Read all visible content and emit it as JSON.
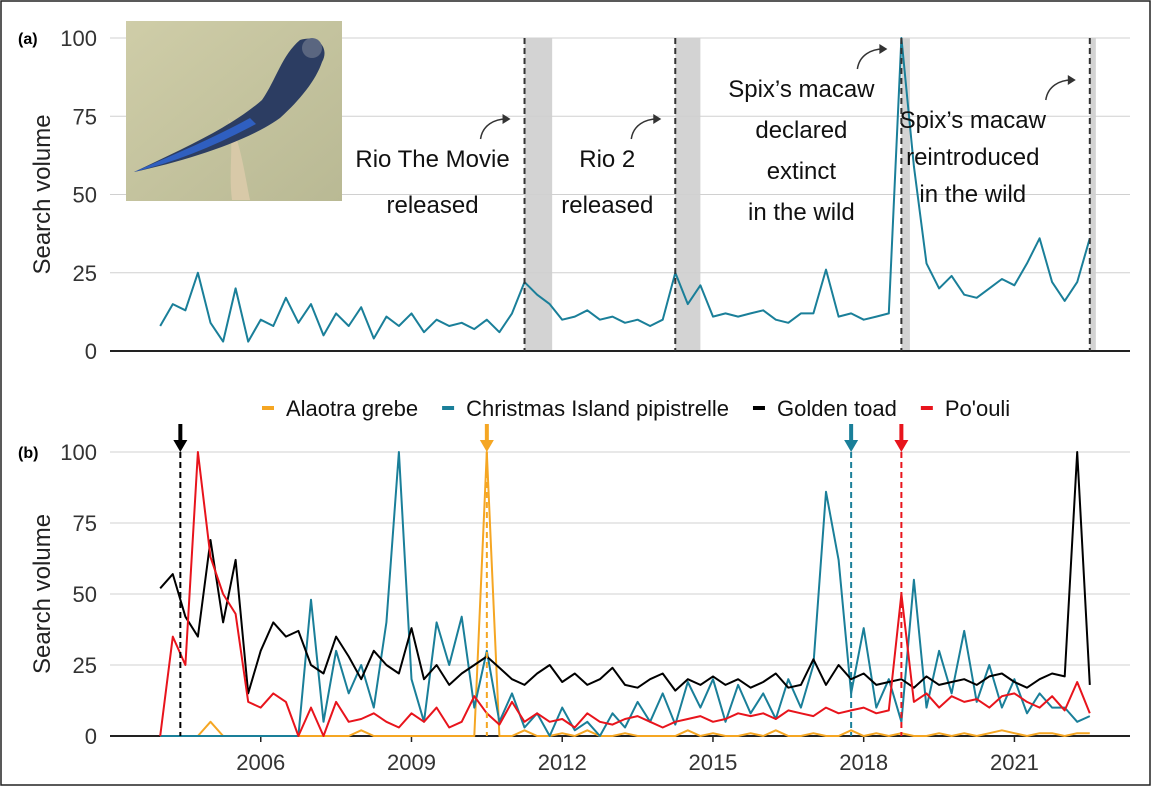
{
  "chart_data": [
    {
      "type": "line",
      "panel_label": "(a)",
      "y_label": "Search volume",
      "x": [
        2004,
        2004.25,
        2004.5,
        2004.75,
        2005,
        2005.25,
        2005.5,
        2005.75,
        2006,
        2006.25,
        2006.5,
        2006.75,
        2007,
        2007.25,
        2007.5,
        2007.75,
        2008,
        2008.25,
        2008.5,
        2008.75,
        2009,
        2009.25,
        2009.5,
        2009.75,
        2010,
        2010.25,
        2010.5,
        2010.75,
        2011,
        2011.25,
        2011.5,
        2011.75,
        2012,
        2012.25,
        2012.5,
        2012.75,
        2013,
        2013.25,
        2013.5,
        2013.75,
        2014,
        2014.25,
        2014.5,
        2014.75,
        2015,
        2015.25,
        2015.5,
        2015.75,
        2016,
        2016.25,
        2016.5,
        2016.75,
        2017,
        2017.25,
        2017.5,
        2017.75,
        2018,
        2018.25,
        2018.5,
        2018.75,
        2019,
        2019.25,
        2019.5,
        2019.75,
        2020,
        2020.25,
        2020.5,
        2020.75,
        2021,
        2021.25,
        2021.5,
        2021.75,
        2022,
        2022.25,
        2022.5
      ],
      "series": [
        {
          "color": "#1a7f99",
          "values": [
            8,
            15,
            13,
            25,
            9,
            3,
            20,
            3,
            10,
            8,
            17,
            9,
            15,
            5,
            12,
            8,
            14,
            4,
            11,
            8,
            12,
            6,
            10,
            8,
            9,
            7,
            10,
            6,
            12,
            22,
            18,
            15,
            10,
            11,
            13,
            10,
            11,
            9,
            10,
            8,
            10,
            25,
            15,
            21,
            11,
            12,
            11,
            12,
            13,
            10,
            9,
            12,
            12,
            26,
            11,
            12,
            10,
            11,
            12,
            100,
            59,
            28,
            20,
            24,
            18,
            17,
            20,
            23,
            21,
            28,
            36,
            22,
            16,
            22,
            36
          ]
        }
      ],
      "xlim": [
        2003,
        2023.3
      ],
      "ylim": [
        0,
        100
      ],
      "yticks": [
        0,
        25,
        50,
        75,
        100
      ],
      "annotations": [
        {
          "x": 2011.25,
          "shade": [
            2011.25,
            2011.8
          ],
          "text": [
            "Rio The Movie",
            "released"
          ]
        },
        {
          "x": 2014.25,
          "shade": [
            2014.25,
            2014.75
          ],
          "text": [
            "Rio 2",
            "released"
          ]
        },
        {
          "x": 2018.75,
          "shade": [
            2018.75,
            2018.92
          ],
          "text": [
            "Spix’s macaw",
            "declared",
            "extinct",
            "in the wild"
          ]
        },
        {
          "x": 2022.5,
          "shade": [
            2022.5,
            2022.62
          ],
          "text": [
            "Spix’s macaw",
            "reintroduced",
            "in the wild"
          ]
        }
      ]
    },
    {
      "type": "line",
      "panel_label": "(b)",
      "y_label": "Search volume",
      "x": [
        2004,
        2004.25,
        2004.5,
        2004.75,
        2005,
        2005.25,
        2005.5,
        2005.75,
        2006,
        2006.25,
        2006.5,
        2006.75,
        2007,
        2007.25,
        2007.5,
        2007.75,
        2008,
        2008.25,
        2008.5,
        2008.75,
        2009,
        2009.25,
        2009.5,
        2009.75,
        2010,
        2010.25,
        2010.5,
        2010.75,
        2011,
        2011.25,
        2011.5,
        2011.75,
        2012,
        2012.25,
        2012.5,
        2012.75,
        2013,
        2013.25,
        2013.5,
        2013.75,
        2014,
        2014.25,
        2014.5,
        2014.75,
        2015,
        2015.25,
        2015.5,
        2015.75,
        2016,
        2016.25,
        2016.5,
        2016.75,
        2017,
        2017.25,
        2017.5,
        2017.75,
        2018,
        2018.25,
        2018.5,
        2018.75,
        2019,
        2019.25,
        2019.5,
        2019.75,
        2020,
        2020.25,
        2020.5,
        2020.75,
        2021,
        2021.25,
        2021.5,
        2021.75,
        2022,
        2022.25,
        2022.5
      ],
      "series": [
        {
          "name": "Alaotra grebe",
          "color": "#f5a623",
          "values": [
            0,
            0,
            0,
            0,
            5,
            0,
            0,
            0,
            0,
            0,
            0,
            0,
            0,
            0,
            0,
            0,
            2,
            0,
            0,
            0,
            0,
            0,
            0,
            0,
            0,
            0,
            100,
            0,
            0,
            2,
            0,
            0,
            1,
            0,
            2,
            0,
            0,
            1,
            0,
            0,
            0,
            0,
            2,
            0,
            1,
            0,
            0,
            1,
            0,
            2,
            0,
            0,
            1,
            0,
            0,
            2,
            0,
            1,
            0,
            1,
            0,
            0,
            1,
            0,
            1,
            0,
            1,
            2,
            1,
            0,
            1,
            1,
            0,
            1,
            1
          ]
        },
        {
          "name": "Christmas Island pipistrelle",
          "color": "#1a7f99",
          "values": [
            0,
            0,
            0,
            0,
            0,
            0,
            0,
            0,
            0,
            0,
            0,
            0,
            48,
            5,
            30,
            15,
            25,
            10,
            40,
            100,
            20,
            5,
            40,
            25,
            42,
            10,
            30,
            5,
            15,
            3,
            8,
            0,
            10,
            2,
            5,
            0,
            8,
            3,
            12,
            5,
            15,
            4,
            19,
            10,
            20,
            5,
            18,
            8,
            15,
            6,
            20,
            10,
            25,
            86,
            62,
            15,
            38,
            10,
            20,
            5,
            55,
            10,
            30,
            15,
            37,
            12,
            25,
            10,
            20,
            8,
            15,
            10,
            10,
            5,
            7
          ]
        },
        {
          "name": "Golden toad",
          "color": "#000000",
          "values": [
            52,
            57,
            42,
            35,
            69,
            40,
            62,
            15,
            30,
            40,
            35,
            37,
            25,
            22,
            35,
            28,
            20,
            30,
            25,
            22,
            38,
            20,
            25,
            18,
            22,
            25,
            28,
            24,
            20,
            18,
            22,
            25,
            19,
            22,
            18,
            20,
            24,
            18,
            17,
            20,
            22,
            16,
            20,
            18,
            21,
            18,
            20,
            17,
            19,
            22,
            17,
            18,
            27,
            18,
            25,
            20,
            22,
            18,
            19,
            20,
            17,
            21,
            18,
            19,
            20,
            18,
            21,
            22,
            19,
            17,
            20,
            22,
            21,
            100,
            18
          ]
        },
        {
          "name": "Po'ouli",
          "color": "#e8141c",
          "values": [
            0,
            35,
            25,
            100,
            63,
            50,
            43,
            12,
            10,
            15,
            12,
            0,
            10,
            0,
            12,
            5,
            6,
            8,
            5,
            3,
            8,
            5,
            10,
            3,
            5,
            14,
            8,
            4,
            12,
            5,
            8,
            5,
            6,
            3,
            8,
            5,
            4,
            6,
            7,
            5,
            3,
            5,
            6,
            7,
            5,
            6,
            8,
            7,
            8,
            6,
            9,
            8,
            7,
            10,
            8,
            9,
            10,
            8,
            9,
            50,
            12,
            15,
            10,
            14,
            12,
            13,
            10,
            14,
            15,
            12,
            10,
            14,
            9,
            19,
            8
          ]
        }
      ],
      "xlim": [
        2003,
        2023.3
      ],
      "xticks": [
        2006,
        2009,
        2012,
        2015,
        2018,
        2021
      ],
      "ylim": [
        0,
        100
      ],
      "yticks": [
        0,
        25,
        50,
        75,
        100
      ],
      "markers": [
        {
          "series": 2,
          "x": 2004.4
        },
        {
          "series": 0,
          "x": 2010.5
        },
        {
          "series": 1,
          "x": 2017.75
        },
        {
          "series": 3,
          "x": 2018.75
        }
      ]
    }
  ]
}
